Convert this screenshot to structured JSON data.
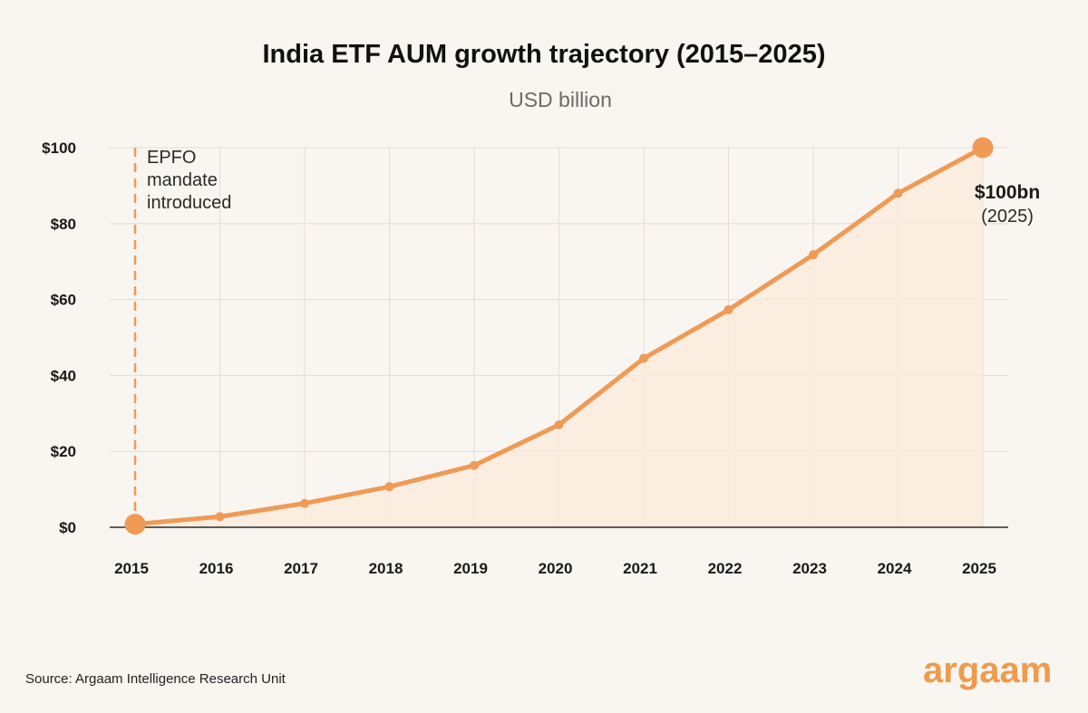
{
  "title": "India ETF AUM growth trajectory (2015–2025)",
  "subtitle": "USD billion",
  "source": "Source: Argaam Intelligence Research Unit",
  "brand": "argaam",
  "colors": {
    "line": "#ef9a55",
    "area": "#fbeadb",
    "grid": "#e3ddd5",
    "baseline": "#2a2a2a",
    "background": "#f9f5f0"
  },
  "chart_data": {
    "type": "area",
    "x": [
      "2015",
      "2016",
      "2017",
      "2018",
      "2019",
      "2020",
      "2021",
      "2022",
      "2023",
      "2024",
      "2025"
    ],
    "series": [
      {
        "values": [
          0.8,
          2.8,
          6.3,
          10.7,
          16.3,
          27.0,
          44.5,
          57.3,
          71.8,
          88.0,
          100.0
        ]
      }
    ],
    "ylim": [
      0,
      100
    ],
    "yticks": [
      0,
      20,
      40,
      60,
      80,
      100
    ],
    "ytick_labels": [
      "$0",
      "$20",
      "$40",
      "$60",
      "$80",
      "$100"
    ],
    "grid": true,
    "annotations": [
      {
        "label_lines": [
          "EPFO",
          "mandate",
          "introduced"
        ],
        "x": "2015",
        "style": "dashed vertical line"
      },
      {
        "label": "$100bn",
        "sublabel": "(2025)",
        "x": "2025",
        "y": 100
      }
    ]
  }
}
